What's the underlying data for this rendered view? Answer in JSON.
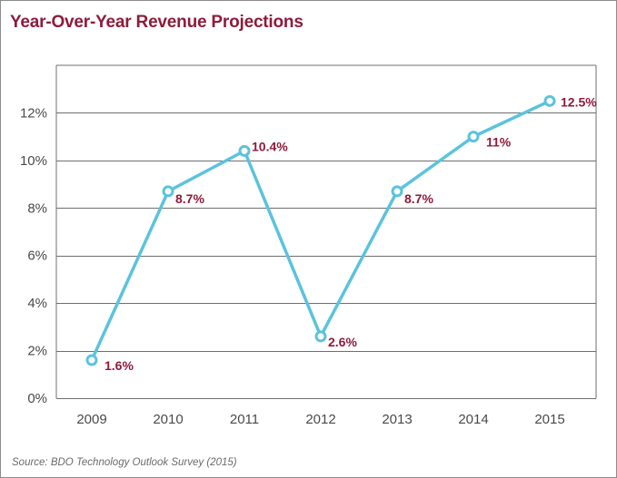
{
  "title": "Year-Over-Year Revenue Projections",
  "source": "Source: BDO Technology Outlook Survey (2015)",
  "colors": {
    "title": "#8e1b3b",
    "line": "#5bc3dc",
    "label": "#8e1b3b",
    "grid": "#6f6f6f",
    "border": "#8c8c8c"
  },
  "chart_data": {
    "type": "line",
    "categories": [
      "2009",
      "2010",
      "2011",
      "2012",
      "2013",
      "2014",
      "2015"
    ],
    "series": [
      {
        "values": [
          1.6,
          8.7,
          10.4,
          2.6,
          8.7,
          11.0,
          12.5
        ],
        "labels": [
          "1.6%",
          "8.7%",
          "10.4%",
          "2.6%",
          "8.7%",
          "11%",
          "12.5%"
        ]
      }
    ],
    "yticks": [
      "0%",
      "2%",
      "4%",
      "6%",
      "8%",
      "10%",
      "12%"
    ],
    "yvalues": [
      0,
      2,
      4,
      6,
      8,
      10,
      12
    ],
    "ylim": [
      0,
      14
    ],
    "xlabel": "",
    "ylabel": "",
    "grid": true,
    "legend": "none"
  }
}
